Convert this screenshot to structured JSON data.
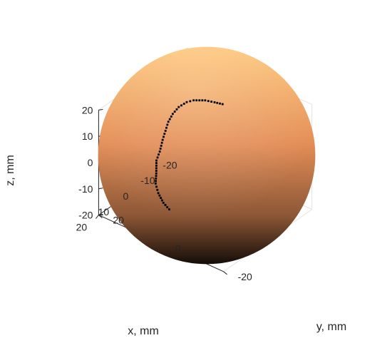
{
  "chart_data": {
    "type": "scatter3d",
    "title": "",
    "xlabel": "x, mm",
    "ylabel": "y, mm",
    "zlabel": "z, mm",
    "xlim": [
      -20,
      20
    ],
    "ylim": [
      -20,
      20
    ],
    "zlim": [
      -20,
      20
    ],
    "x_ticks": [
      "20",
      "10",
      "0",
      "-10",
      "-20"
    ],
    "y_ticks": [
      "-20",
      "0",
      "20"
    ],
    "z_ticks": [
      "20",
      "10",
      "0",
      "-10",
      "-20"
    ],
    "grid": true,
    "surface": {
      "shape": "sphere",
      "radius_mm": 20,
      "center": [
        0,
        0,
        0
      ],
      "colormap": "copper",
      "color_light": "#ffc77a",
      "color_dark": "#150d07"
    },
    "series": [
      {
        "marker": "dot",
        "color": "#000000",
        "description_points": [
          {
            "x": -5.0,
            "y": 2.0,
            "z": 19.3
          },
          {
            "x": -4.2,
            "y": 0.0,
            "z": 19.4
          },
          {
            "x": -3.5,
            "y": -2.5,
            "z": 19.2
          },
          {
            "x": -2.5,
            "y": -5.5,
            "z": 18.2
          },
          {
            "x": -1.5,
            "y": -7.0,
            "z": 17.3
          },
          {
            "x": 0.0,
            "y": -8.5,
            "z": 15.5
          },
          {
            "x": 2.0,
            "y": -9.0,
            "z": 13.8
          },
          {
            "x": 4.0,
            "y": -9.0,
            "z": 12.0
          },
          {
            "x": 6.0,
            "y": -8.5,
            "z": 10.0
          },
          {
            "x": 8.0,
            "y": -8.0,
            "z": 8.0
          },
          {
            "x": 10.0,
            "y": -7.5,
            "z": 5.0
          },
          {
            "x": 11.5,
            "y": -7.5,
            "z": 2.5
          },
          {
            "x": 13.0,
            "y": -6.5,
            "z": -1.0
          },
          {
            "x": 14.0,
            "y": -6.0,
            "z": -4.0
          },
          {
            "x": 14.2,
            "y": -5.0,
            "z": -7.0
          },
          {
            "x": 14.0,
            "y": -3.5,
            "z": -10.0
          },
          {
            "x": 13.5,
            "y": -2.0,
            "z": -12.0
          }
        ]
      }
    ]
  }
}
